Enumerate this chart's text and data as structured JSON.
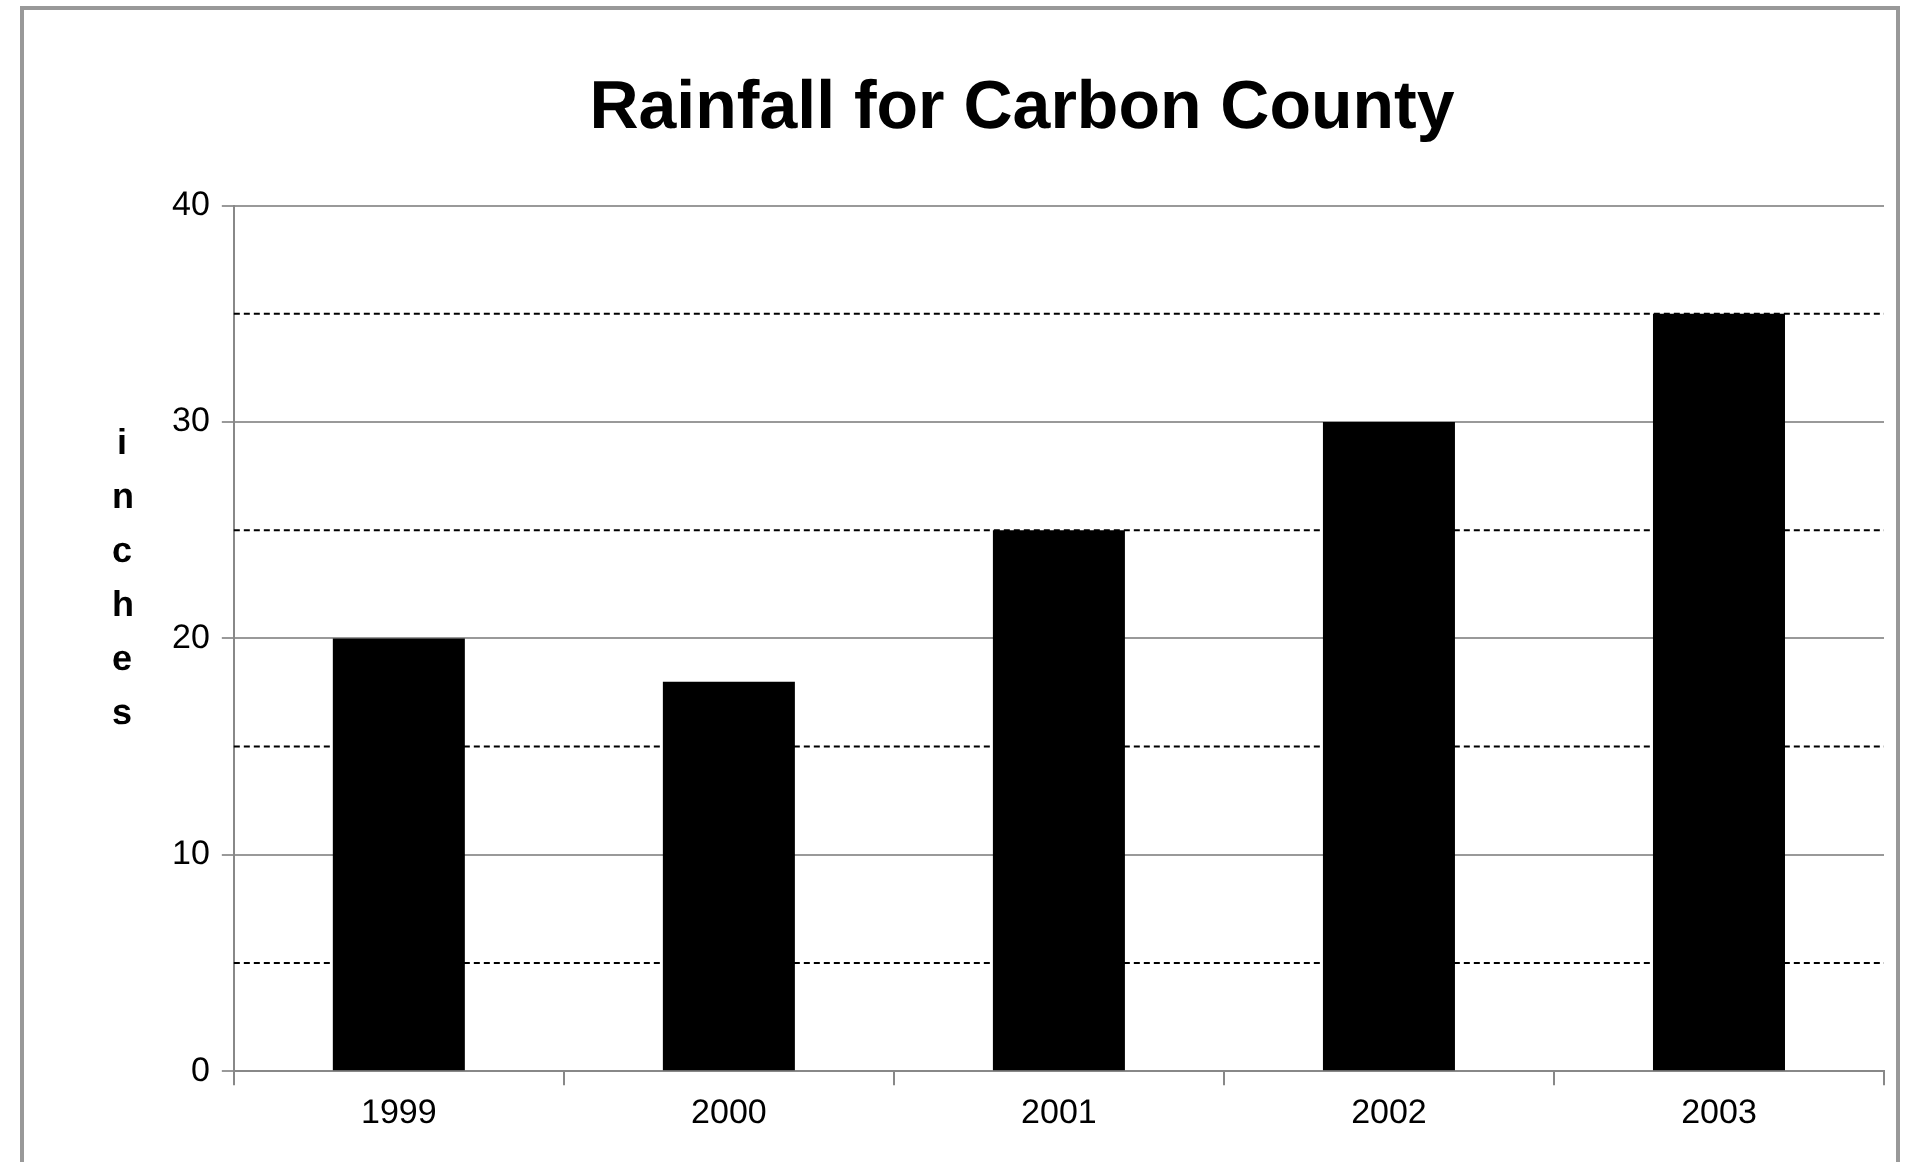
{
  "chart_data": {
    "type": "bar",
    "title": "Rainfall for Carbon County",
    "ylabel": "inches",
    "categories": [
      "1999",
      "2000",
      "2001",
      "2002",
      "2003"
    ],
    "values": [
      20,
      18,
      25,
      30,
      35
    ],
    "color": "#000000",
    "ylim": [
      0,
      40
    ],
    "yticks": [
      0,
      10,
      20,
      30,
      40
    ],
    "grid": "y",
    "ref_lines": [
      {
        "axis": "y",
        "value": 5,
        "color": "#000000",
        "line_style": "dashed"
      },
      {
        "axis": "y",
        "value": 15,
        "color": "#000000",
        "line_style": "dashed"
      },
      {
        "axis": "y",
        "value": 25,
        "color": "#000000",
        "line_style": "dashed"
      },
      {
        "axis": "y",
        "value": 35,
        "color": "#000000",
        "line_style": "dashed"
      }
    ],
    "legend": false
  }
}
